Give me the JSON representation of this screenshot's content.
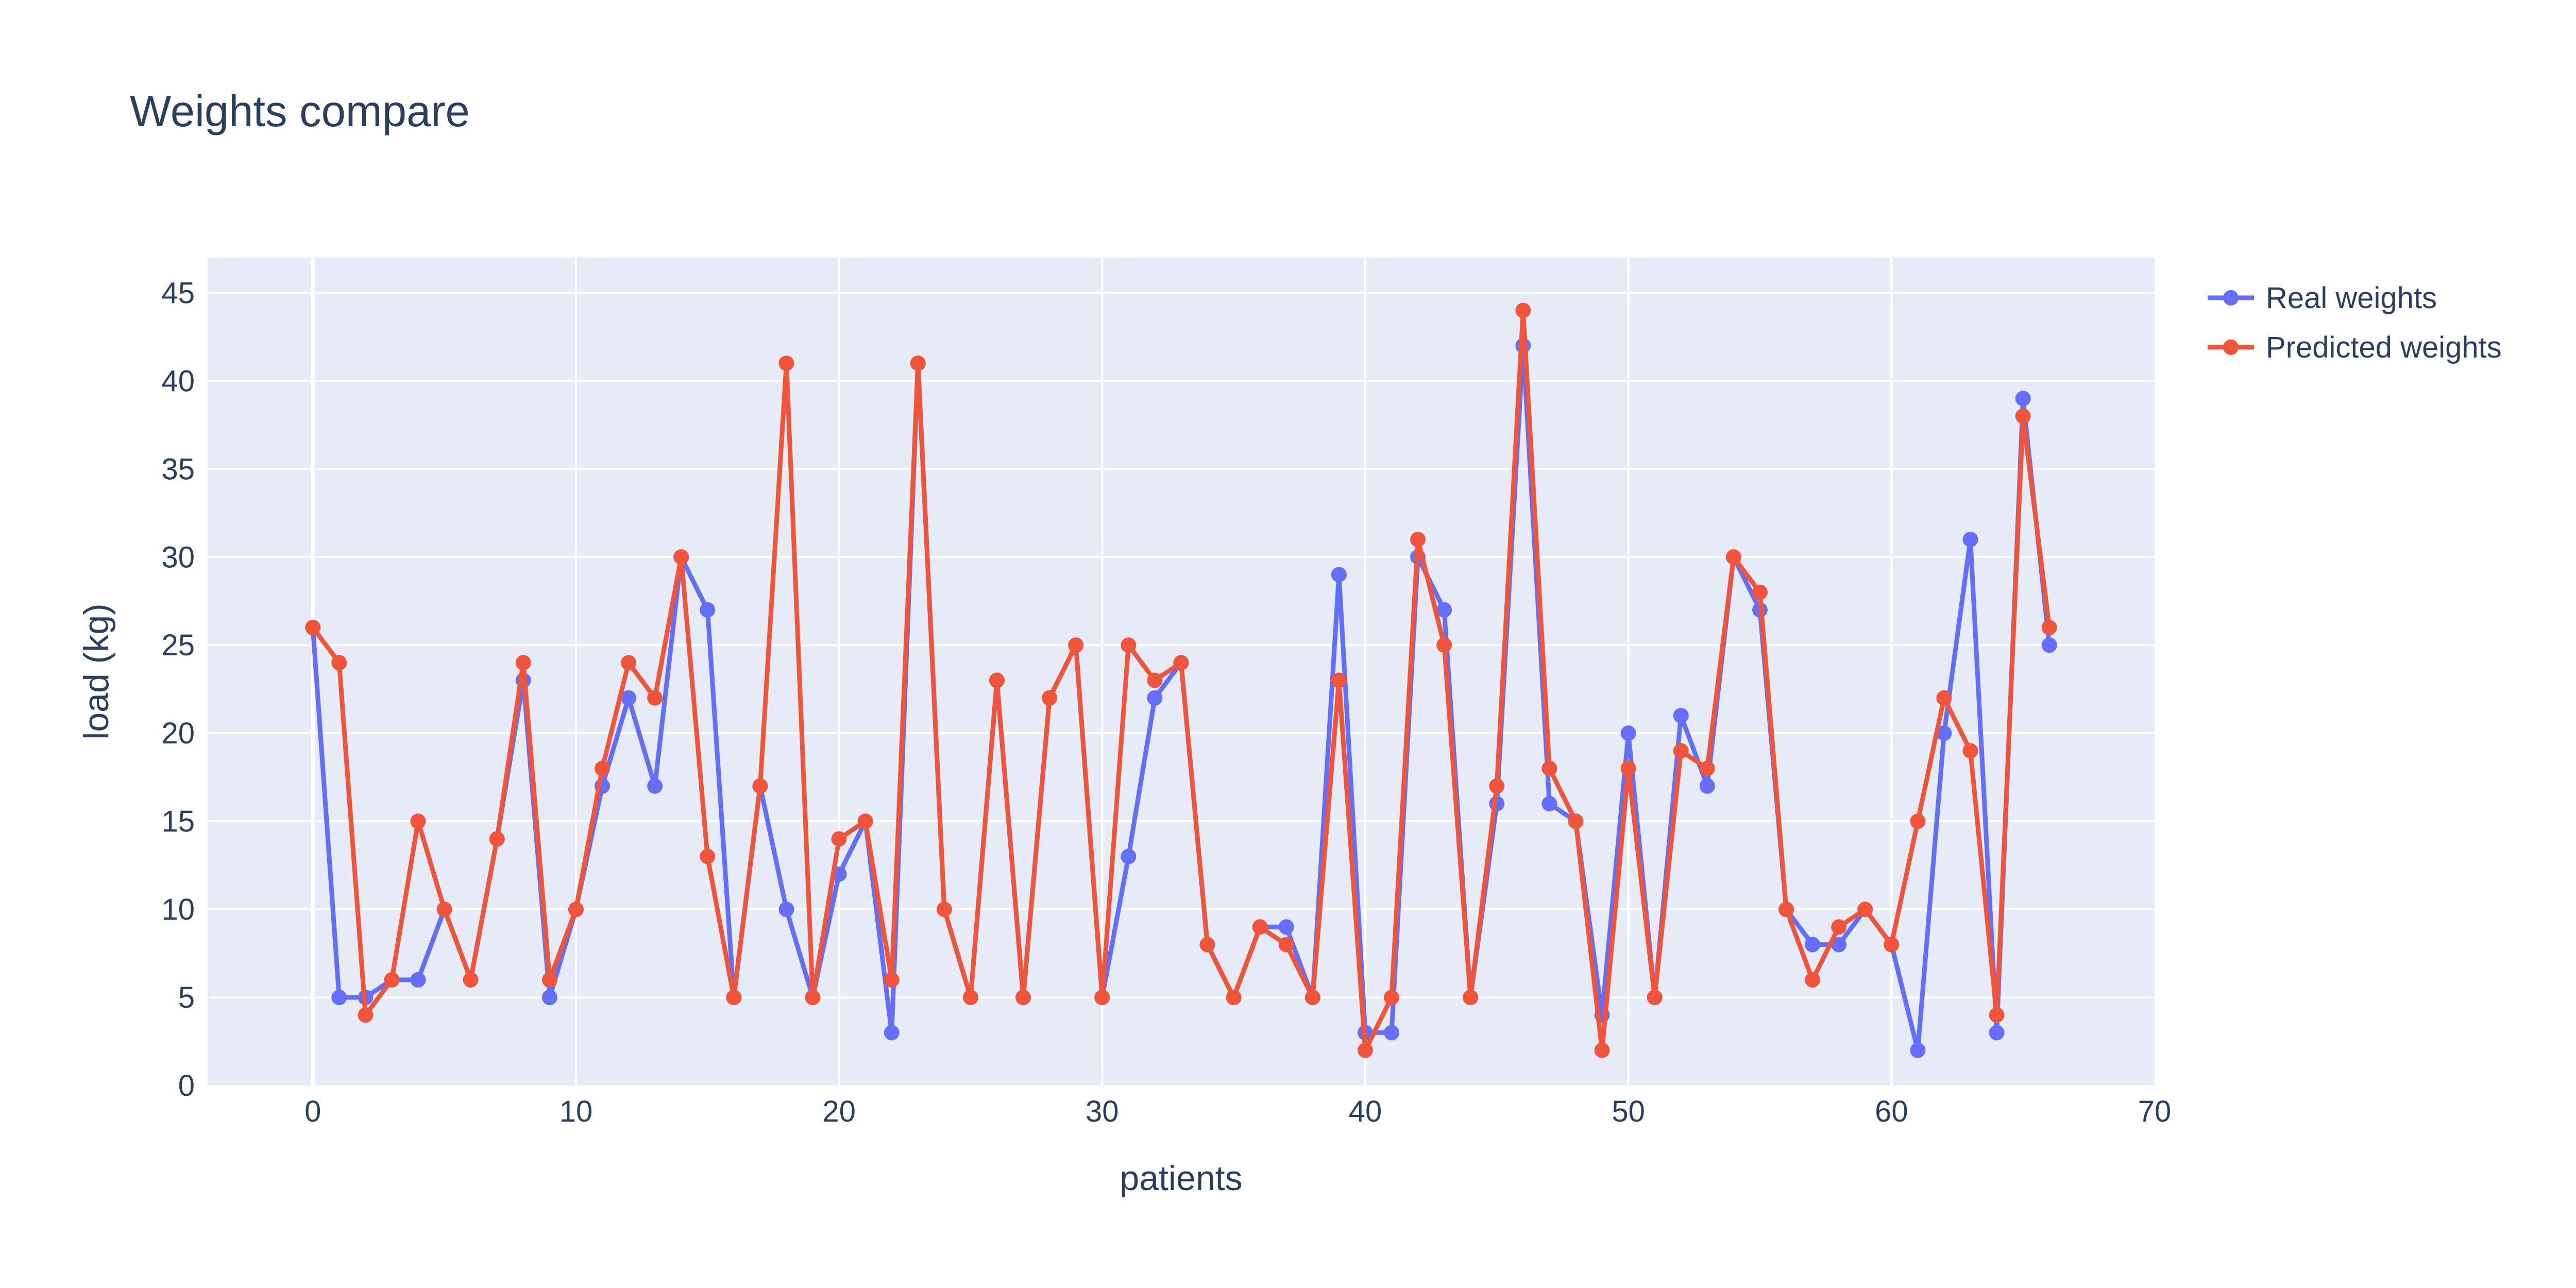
{
  "chart_data": {
    "type": "line",
    "title": "Weights compare",
    "xlabel": "patients",
    "ylabel": "load (kg)",
    "xlim": [
      -4,
      70
    ],
    "ylim": [
      0,
      47
    ],
    "xticks": [
      0,
      10,
      20,
      30,
      40,
      50,
      60,
      70
    ],
    "yticks": [
      0,
      5,
      10,
      15,
      20,
      25,
      30,
      35,
      40,
      45
    ],
    "grid": true,
    "legend_position": "top-right",
    "x": [
      0,
      1,
      2,
      3,
      4,
      5,
      6,
      7,
      8,
      9,
      10,
      11,
      12,
      13,
      14,
      15,
      16,
      17,
      18,
      19,
      20,
      21,
      22,
      23,
      24,
      25,
      26,
      27,
      28,
      29,
      30,
      31,
      32,
      33,
      34,
      35,
      36,
      37,
      38,
      39,
      40,
      41,
      42,
      43,
      44,
      45,
      46,
      47,
      48,
      49,
      50,
      51,
      52,
      53,
      54,
      55,
      56,
      57,
      58,
      59,
      60,
      61,
      62,
      63,
      64,
      65,
      66
    ],
    "series": [
      {
        "name": "Real weights",
        "color": "#636efa",
        "values": [
          26,
          5,
          5,
          6,
          6,
          10,
          6,
          14,
          23,
          5,
          10,
          17,
          22,
          17,
          30,
          27,
          5,
          17,
          10,
          5,
          12,
          15,
          3,
          41,
          10,
          5,
          23,
          5,
          22,
          25,
          5,
          13,
          22,
          24,
          8,
          5,
          9,
          9,
          5,
          29,
          3,
          3,
          30,
          27,
          5,
          16,
          42,
          16,
          15,
          4,
          20,
          5,
          21,
          17,
          30,
          27,
          10,
          8,
          8,
          10,
          8,
          2,
          20,
          31,
          3,
          39,
          25
        ]
      },
      {
        "name": "Predicted weights",
        "color": "#ef553b",
        "values": [
          26,
          24,
          4,
          6,
          15,
          10,
          6,
          14,
          24,
          6,
          10,
          18,
          24,
          22,
          30,
          13,
          5,
          17,
          41,
          5,
          14,
          15,
          6,
          41,
          10,
          5,
          23,
          5,
          22,
          25,
          5,
          25,
          23,
          24,
          8,
          5,
          9,
          8,
          5,
          23,
          2,
          5,
          31,
          25,
          5,
          17,
          44,
          18,
          15,
          2,
          18,
          5,
          19,
          18,
          30,
          28,
          10,
          6,
          9,
          10,
          8,
          15,
          22,
          19,
          4,
          38,
          26
        ]
      }
    ]
  }
}
